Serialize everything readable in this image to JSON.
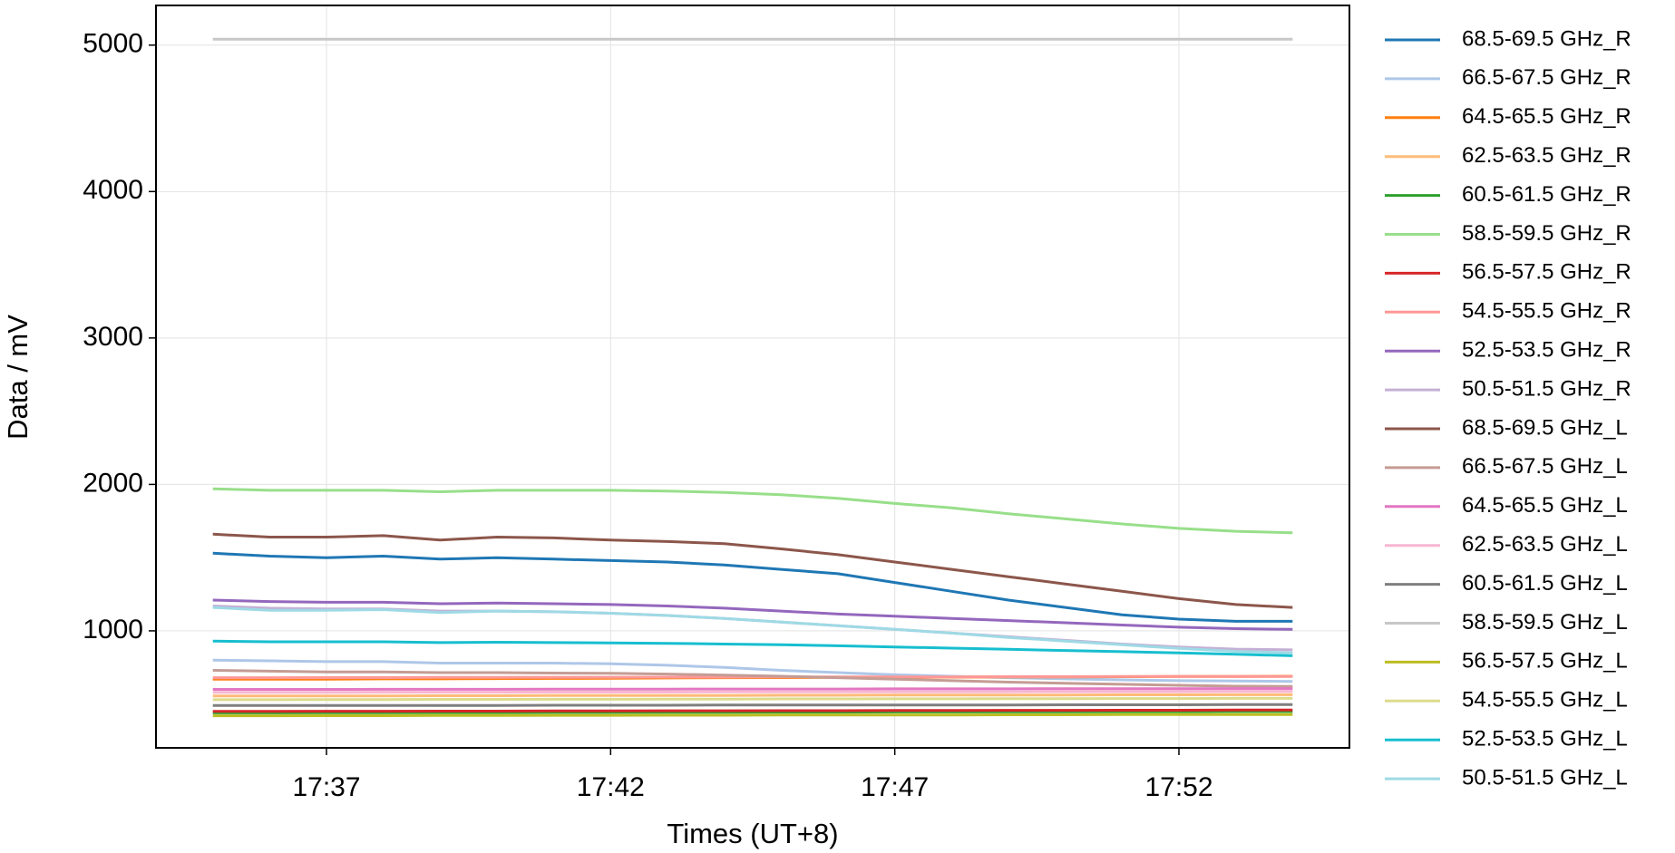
{
  "chart_data": {
    "type": "line",
    "x_label": "Times (UT+8)",
    "y_label": "Data / mV",
    "x": [
      "17:35",
      "17:36",
      "17:37",
      "17:38",
      "17:39",
      "17:40",
      "17:41",
      "17:42",
      "17:43",
      "17:44",
      "17:45",
      "17:46",
      "17:47",
      "17:48",
      "17:49",
      "17:50",
      "17:51",
      "17:52",
      "17:53",
      "17:54"
    ],
    "xlim": [
      "17:34",
      "17:55"
    ],
    "xticks": [
      "17:37",
      "17:42",
      "17:47",
      "17:52"
    ],
    "ylim": [
      201,
      5271
    ],
    "yticks": [
      1000,
      2000,
      3000,
      4000,
      5000
    ],
    "grid": true,
    "legend": "outside right",
    "series": [
      {
        "name": "68.5-69.5 GHz_R",
        "color": "#1f77b4",
        "values": [
          1530,
          1510,
          1500,
          1510,
          1490,
          1500,
          1490,
          1480,
          1470,
          1450,
          1420,
          1390,
          1330,
          1270,
          1210,
          1160,
          1110,
          1080,
          1065,
          1065
        ]
      },
      {
        "name": "66.5-67.5 GHz_R",
        "color": "#aec7e8",
        "values": [
          800,
          795,
          790,
          790,
          780,
          780,
          780,
          775,
          765,
          750,
          730,
          715,
          700,
          690,
          680,
          672,
          665,
          660,
          658,
          655
        ]
      },
      {
        "name": "64.5-65.5 GHz_R",
        "color": "#ff7f0e",
        "values": [
          670,
          670,
          670,
          672,
          672,
          674,
          675,
          676,
          678,
          680,
          681,
          682,
          683,
          684,
          685,
          686,
          687,
          688,
          689,
          690
        ]
      },
      {
        "name": "62.5-63.5 GHz_R",
        "color": "#ffbb78",
        "values": [
          555,
          555,
          556,
          556,
          557,
          557,
          558,
          558,
          559,
          559,
          560,
          560,
          561,
          561,
          562,
          562,
          563,
          563,
          564,
          564
        ]
      },
      {
        "name": "60.5-61.5 GHz_R",
        "color": "#2ca02c",
        "values": [
          440,
          440,
          441,
          441,
          442,
          442,
          443,
          443,
          444,
          444,
          445,
          445,
          446,
          446,
          447,
          447,
          448,
          448,
          449,
          449
        ]
      },
      {
        "name": "58.5-59.5 GHz_R",
        "color": "#98df8a",
        "values": [
          1970,
          1960,
          1960,
          1960,
          1950,
          1960,
          1960,
          1960,
          1955,
          1945,
          1930,
          1905,
          1870,
          1840,
          1800,
          1765,
          1730,
          1700,
          1680,
          1670
        ]
      },
      {
        "name": "56.5-57.5 GHz_R",
        "color": "#d62728",
        "values": [
          450,
          450,
          451,
          451,
          452,
          452,
          453,
          453,
          454,
          454,
          455,
          455,
          456,
          456,
          457,
          457,
          458,
          458,
          459,
          459
        ]
      },
      {
        "name": "54.5-55.5 GHz_R",
        "color": "#ff9896",
        "values": [
          680,
          680,
          681,
          681,
          682,
          682,
          683,
          683,
          684,
          684,
          685,
          685,
          686,
          686,
          687,
          687,
          688,
          688,
          689,
          689
        ]
      },
      {
        "name": "52.5-53.5 GHz_R",
        "color": "#9467bd",
        "values": [
          1210,
          1200,
          1195,
          1195,
          1185,
          1190,
          1185,
          1180,
          1170,
          1155,
          1135,
          1115,
          1100,
          1085,
          1070,
          1055,
          1040,
          1025,
          1015,
          1010
        ]
      },
      {
        "name": "50.5-51.5 GHz_R",
        "color": "#c5b0d5",
        "values": [
          1170,
          1155,
          1150,
          1150,
          1135,
          1135,
          1130,
          1120,
          1105,
          1085,
          1060,
          1035,
          1010,
          985,
          960,
          935,
          910,
          890,
          875,
          870
        ]
      },
      {
        "name": "68.5-69.5 GHz_L",
        "color": "#8c564b",
        "values": [
          1660,
          1640,
          1640,
          1650,
          1620,
          1640,
          1635,
          1620,
          1610,
          1595,
          1560,
          1520,
          1470,
          1420,
          1370,
          1320,
          1270,
          1220,
          1180,
          1160
        ]
      },
      {
        "name": "66.5-67.5 GHz_L",
        "color": "#c49c94",
        "values": [
          730,
          725,
          720,
          720,
          715,
          715,
          712,
          710,
          705,
          698,
          690,
          680,
          670,
          660,
          650,
          642,
          635,
          628,
          622,
          620
        ]
      },
      {
        "name": "64.5-65.5 GHz_L",
        "color": "#e377c2",
        "values": [
          600,
          600,
          600,
          601,
          601,
          601,
          602,
          602,
          602,
          603,
          603,
          603,
          604,
          604,
          604,
          605,
          605,
          605,
          606,
          606
        ]
      },
      {
        "name": "62.5-63.5 GHz_L",
        "color": "#f7b6d2",
        "values": [
          580,
          580,
          580,
          581,
          581,
          581,
          582,
          582,
          582,
          583,
          583,
          583,
          584,
          584,
          584,
          585,
          585,
          585,
          586,
          586
        ]
      },
      {
        "name": "60.5-61.5 GHz_L",
        "color": "#7f7f7f",
        "values": [
          490,
          490,
          490,
          491,
          491,
          491,
          492,
          492,
          492,
          493,
          493,
          493,
          494,
          494,
          494,
          495,
          495,
          495,
          496,
          496
        ]
      },
      {
        "name": "58.5-59.5 GHz_L",
        "color": "#c7c7c7",
        "values": [
          5040,
          5040,
          5040,
          5040,
          5040,
          5040,
          5040,
          5040,
          5040,
          5040,
          5040,
          5040,
          5040,
          5040,
          5040,
          5040,
          5040,
          5040,
          5040,
          5040
        ]
      },
      {
        "name": "56.5-57.5 GHz_L",
        "color": "#bcbd22",
        "values": [
          420,
          420,
          421,
          421,
          422,
          422,
          423,
          423,
          424,
          424,
          425,
          425,
          426,
          426,
          427,
          427,
          428,
          428,
          429,
          429
        ]
      },
      {
        "name": "54.5-55.5 GHz_L",
        "color": "#dbdb8d",
        "values": [
          530,
          530,
          531,
          531,
          532,
          532,
          533,
          533,
          534,
          534,
          535,
          535,
          536,
          536,
          537,
          537,
          538,
          538,
          539,
          539
        ]
      },
      {
        "name": "52.5-53.5 GHz_L",
        "color": "#17becf",
        "values": [
          930,
          925,
          925,
          925,
          920,
          922,
          920,
          918,
          915,
          910,
          905,
          898,
          890,
          882,
          874,
          866,
          858,
          850,
          840,
          830
        ]
      },
      {
        "name": "50.5-51.5 GHz_L",
        "color": "#9edae5",
        "values": [
          1160,
          1140,
          1140,
          1145,
          1125,
          1135,
          1130,
          1120,
          1105,
          1085,
          1060,
          1035,
          1010,
          985,
          955,
          930,
          905,
          880,
          860,
          850
        ]
      }
    ]
  }
}
